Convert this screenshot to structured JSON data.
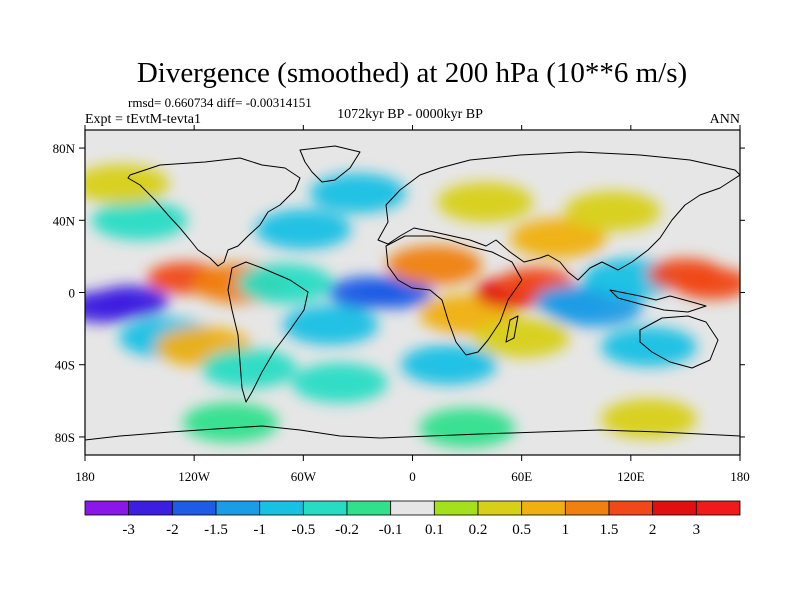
{
  "chart_data": {
    "type": "heatmap",
    "title": "Divergence (smoothed) at 200 hPa (10**6 m/s)",
    "stats_label": "rmsd= 0.660734 diff= -0.00314151",
    "experiment_label": "Expt = tEvtM-tevta1",
    "period_label": "1072kyr BP - 0000kyr BP",
    "season_label": "ANN",
    "xlim": [
      -180,
      180
    ],
    "ylim": [
      -90,
      90
    ],
    "x_ticks": [
      {
        "value": -180,
        "label": "180"
      },
      {
        "value": -120,
        "label": "120W"
      },
      {
        "value": -60,
        "label": "60W"
      },
      {
        "value": 0,
        "label": "0"
      },
      {
        "value": 60,
        "label": "60E"
      },
      {
        "value": 120,
        "label": "120E"
      },
      {
        "value": 180,
        "label": "180"
      }
    ],
    "y_ticks": [
      {
        "value": 80,
        "label": "80N"
      },
      {
        "value": 40,
        "label": "40N"
      },
      {
        "value": 0,
        "label": "0"
      },
      {
        "value": -40,
        "label": "40S"
      },
      {
        "value": -80,
        "label": "80S"
      }
    ],
    "colorbar": {
      "labels": [
        "-3",
        "-2",
        "-1.5",
        "-1",
        "-0.5",
        "-0.2",
        "-0.1",
        "0.1",
        "0.2",
        "0.5",
        "1",
        "1.5",
        "2",
        "3"
      ],
      "colors": [
        "#8a16e8",
        "#3c1ee0",
        "#1f5ce6",
        "#1a9ce6",
        "#18c0e4",
        "#28dcc4",
        "#30e08c",
        "#e6e6e6",
        "#a4e01c",
        "#d8d018",
        "#f0b010",
        "#f08010",
        "#f04818",
        "#e01010",
        "#f01a1a"
      ]
    },
    "field_features": [
      {
        "lon": -155,
        "lat": -5,
        "value": -2.5
      },
      {
        "lon": -170,
        "lat": -8,
        "value": -2.2
      },
      {
        "lon": -125,
        "lat": 8,
        "value": 1.5
      },
      {
        "lon": -95,
        "lat": 5,
        "value": 1.2
      },
      {
        "lon": -135,
        "lat": -25,
        "value": -0.6
      },
      {
        "lon": -115,
        "lat": -30,
        "value": 0.8
      },
      {
        "lon": -70,
        "lat": 5,
        "value": -0.5
      },
      {
        "lon": -45,
        "lat": -18,
        "value": -0.6
      },
      {
        "lon": -25,
        "lat": 0,
        "value": -2.0
      },
      {
        "lon": -10,
        "lat": 0,
        "value": -1.8
      },
      {
        "lon": 12,
        "lat": 15,
        "value": 1.3
      },
      {
        "lon": 30,
        "lat": -12,
        "value": 0.6
      },
      {
        "lon": 55,
        "lat": 0,
        "value": 2.2
      },
      {
        "lon": 68,
        "lat": 5,
        "value": 1.8
      },
      {
        "lon": 88,
        "lat": -5,
        "value": -1.5
      },
      {
        "lon": 100,
        "lat": -8,
        "value": -1.2
      },
      {
        "lon": 120,
        "lat": 8,
        "value": -0.8
      },
      {
        "lon": 150,
        "lat": 10,
        "value": 1.6
      },
      {
        "lon": 165,
        "lat": 5,
        "value": 1.5
      },
      {
        "lon": 80,
        "lat": 30,
        "value": 0.6
      },
      {
        "lon": -150,
        "lat": 40,
        "value": -0.4
      },
      {
        "lon": -60,
        "lat": 35,
        "value": -0.6
      },
      {
        "lon": -30,
        "lat": 55,
        "value": -0.6
      },
      {
        "lon": 40,
        "lat": 50,
        "value": 0.4
      },
      {
        "lon": 110,
        "lat": 45,
        "value": 0.3
      },
      {
        "lon": -160,
        "lat": 60,
        "value": 0.3
      },
      {
        "lon": 20,
        "lat": -40,
        "value": -0.6
      },
      {
        "lon": 60,
        "lat": -25,
        "value": 0.4
      },
      {
        "lon": 130,
        "lat": -30,
        "value": -0.6
      },
      {
        "lon": -90,
        "lat": -42,
        "value": -0.4
      },
      {
        "lon": 130,
        "lat": -70,
        "value": 0.2
      },
      {
        "lon": -100,
        "lat": -72,
        "value": -0.2
      },
      {
        "lon": 30,
        "lat": -75,
        "value": -0.2
      },
      {
        "lon": -40,
        "lat": -50,
        "value": -0.3
      }
    ]
  }
}
